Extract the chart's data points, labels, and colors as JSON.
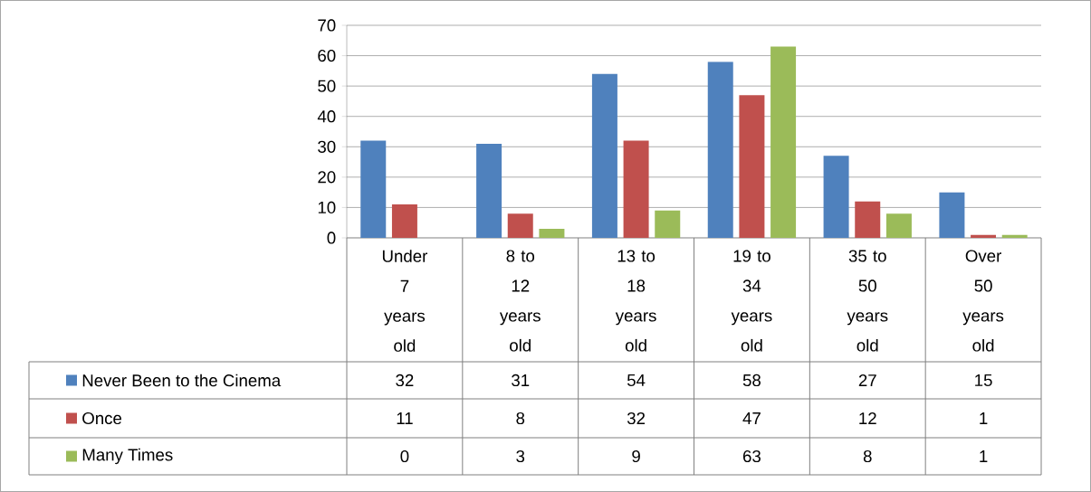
{
  "chart_data": {
    "type": "bar",
    "categories": [
      "Under 7 years old",
      "8 to 12 years old",
      "13 to 18 years old",
      "19 to 34 years old",
      "35 to 50 years old",
      "Over 50 years old"
    ],
    "series": [
      {
        "name": "Never Been to the Cinema",
        "color": "#4f81bd",
        "values": [
          32,
          31,
          54,
          58,
          27,
          15
        ]
      },
      {
        "name": "Once",
        "color": "#c0504d",
        "values": [
          11,
          8,
          32,
          47,
          12,
          1
        ]
      },
      {
        "name": "Many Times",
        "color": "#9bbb59",
        "values": [
          0,
          3,
          9,
          63,
          8,
          1
        ]
      }
    ],
    "ylim": [
      0,
      70
    ],
    "yticks": [
      0,
      10,
      20,
      30,
      40,
      50,
      60,
      70
    ],
    "grid": "y",
    "legend": "left",
    "data_labels": true
  }
}
